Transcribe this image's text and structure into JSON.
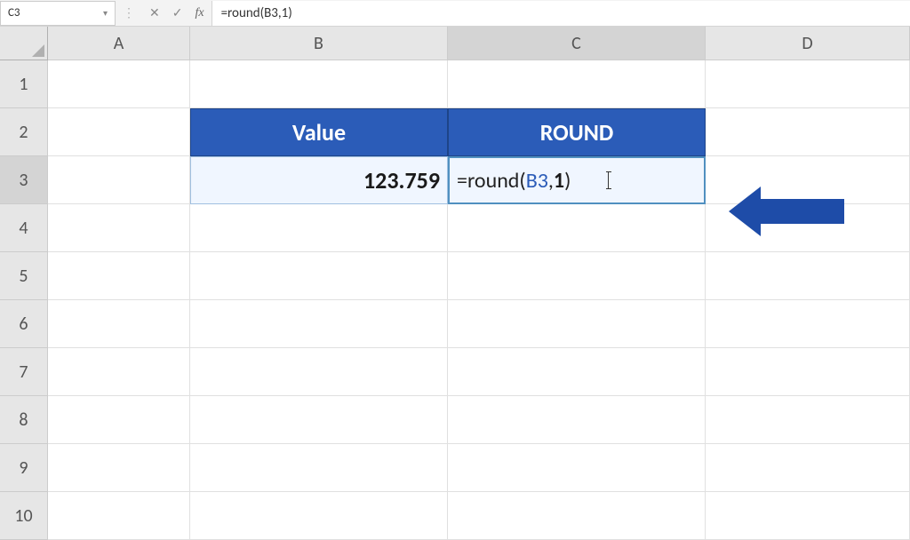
{
  "formula_bar": {
    "cell_reference": "C3",
    "cancel_icon": "✕",
    "confirm_icon": "✓",
    "fx_label": "fx",
    "formula": "=round(B3,1)"
  },
  "columns": [
    "A",
    "B",
    "C",
    "D"
  ],
  "active_column": "C",
  "row_numbers": [
    "1",
    "2",
    "3",
    "4",
    "5",
    "6",
    "7",
    "8",
    "9",
    "10"
  ],
  "active_row": "3",
  "table": {
    "header_value": "Value",
    "header_round": "ROUND",
    "value_cell": "123.759",
    "formula_prefix": "=round(",
    "formula_ref": "B3",
    "formula_sep": ",",
    "formula_num": "1",
    "formula_suffix": ")"
  },
  "styling": {
    "header_bg": "#2b5cb8",
    "header_text": "#ffffff",
    "data_bg": "#f0f6ff",
    "arrow_color": "#1e4ca8",
    "grid_header_bg": "#e6e6e6"
  }
}
